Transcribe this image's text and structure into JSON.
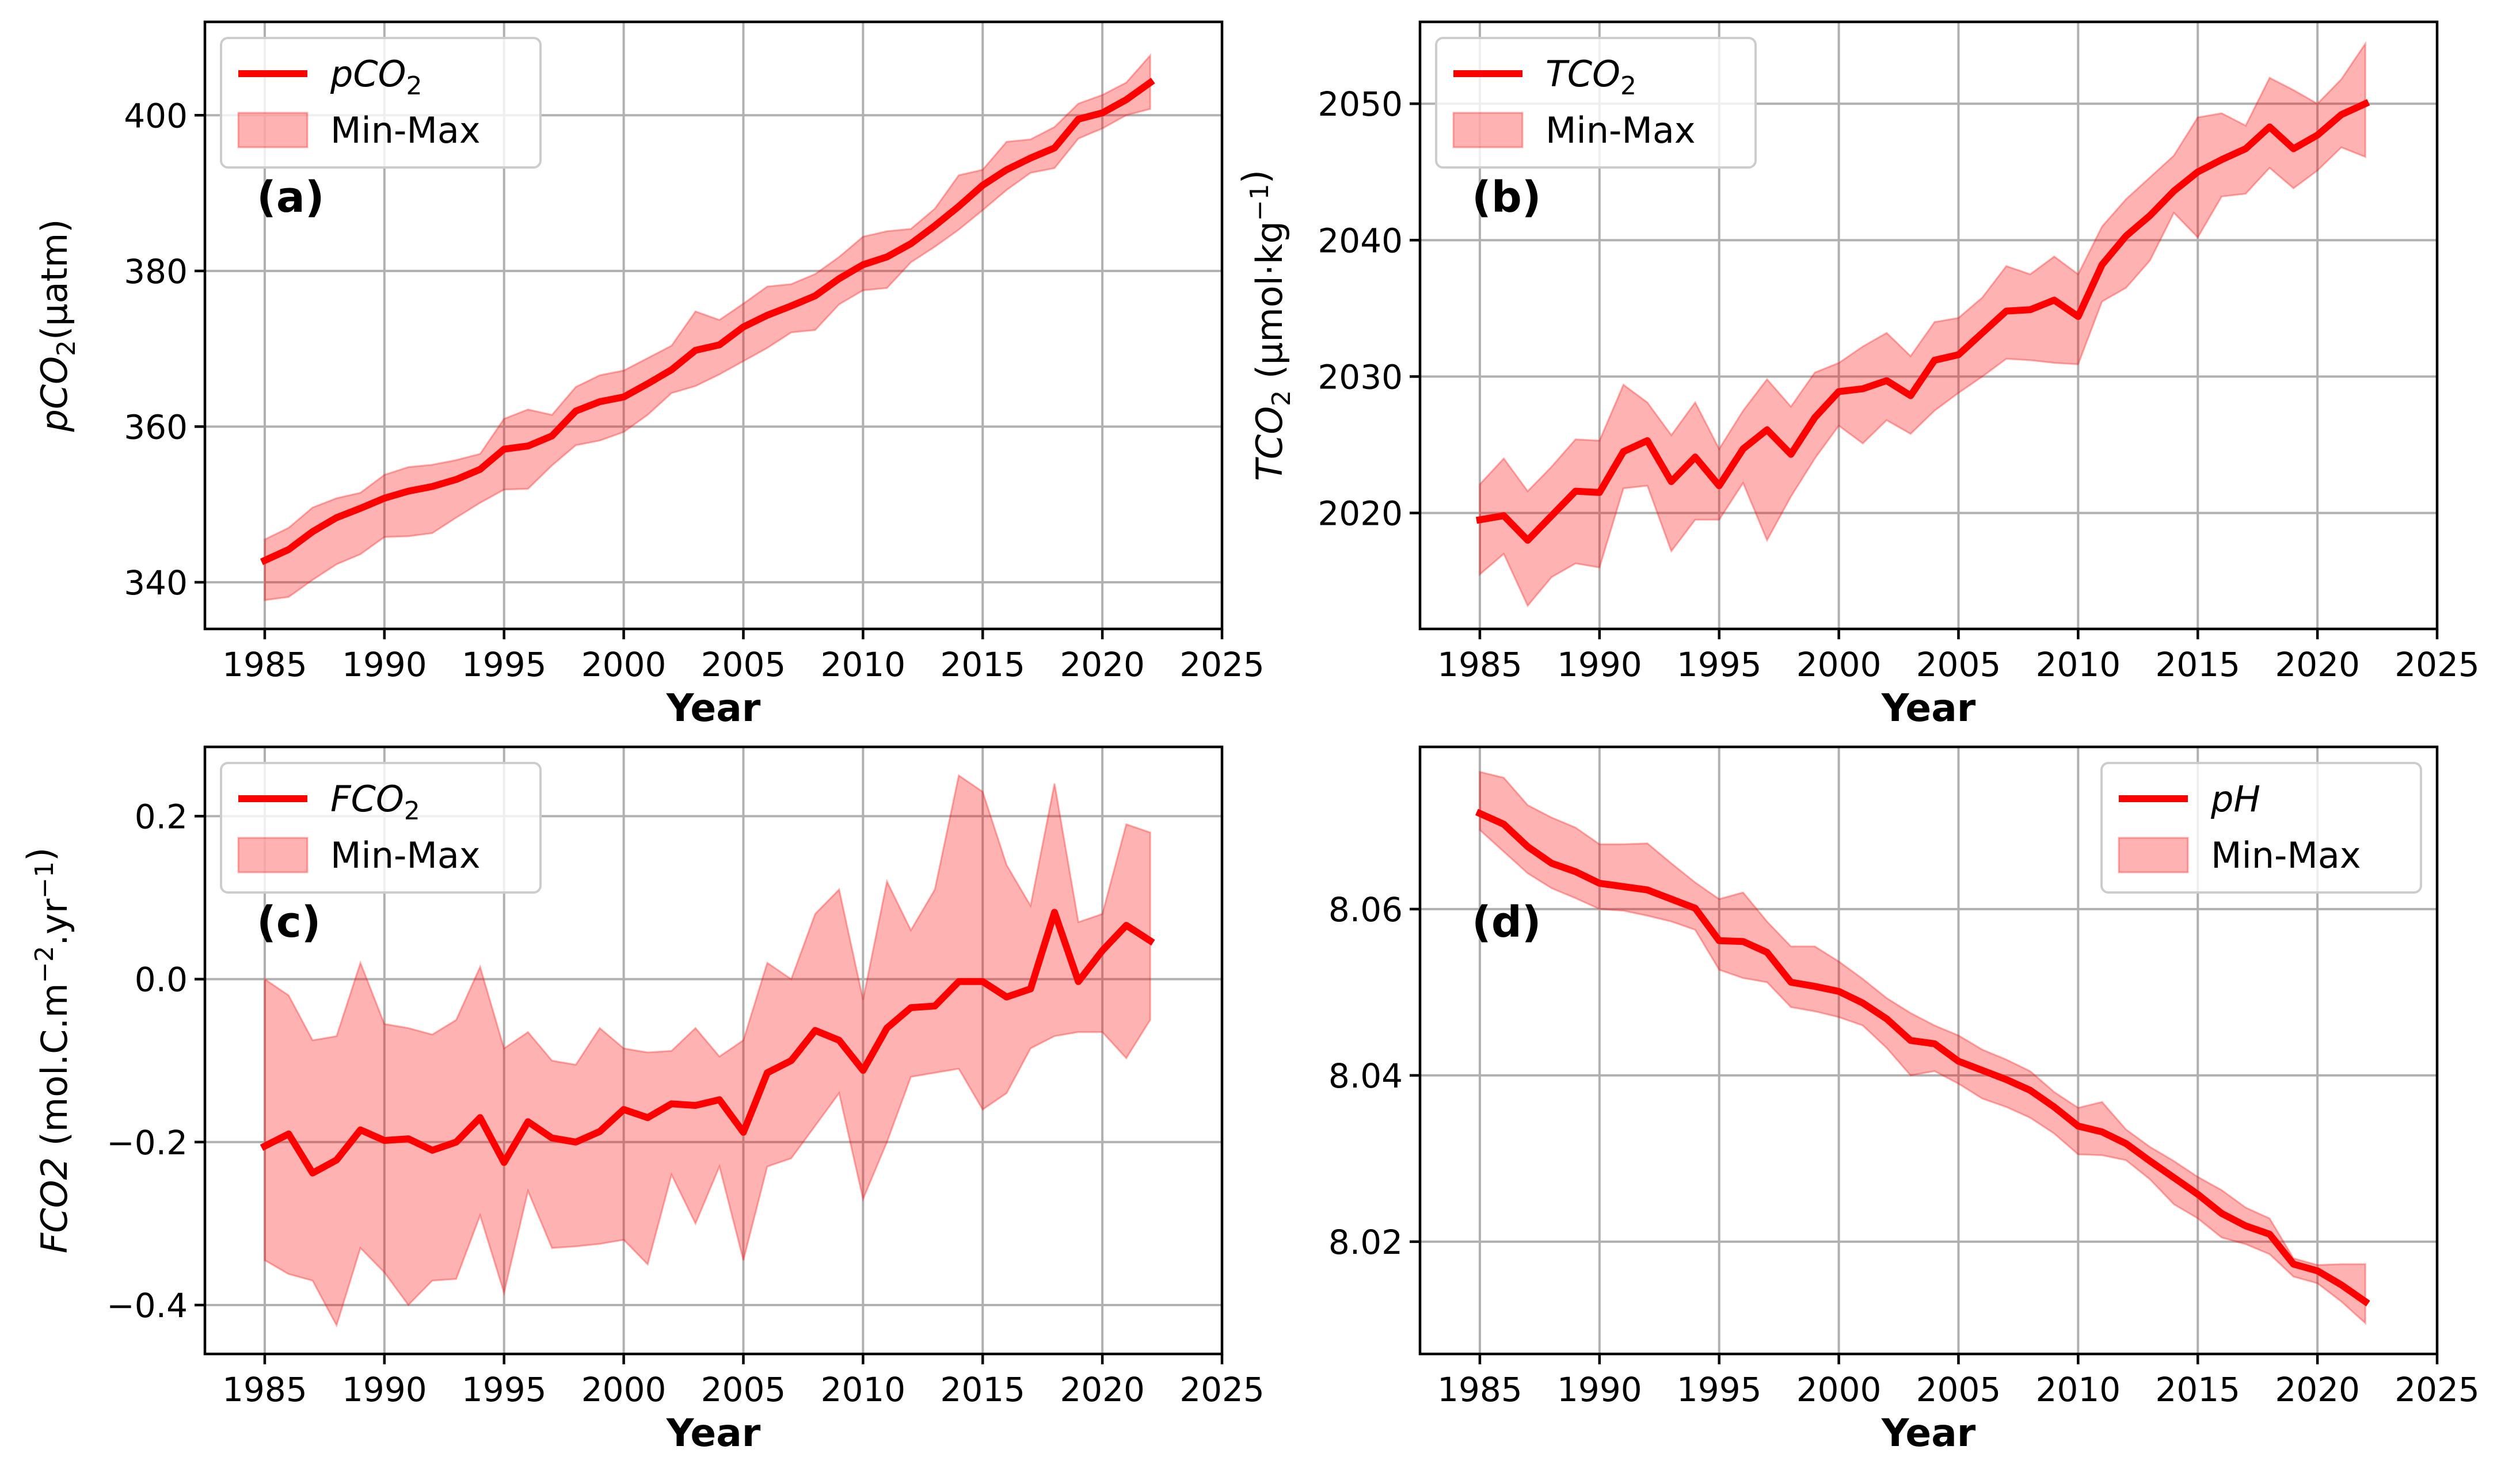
{
  "chart_data": [
    {
      "id": "a",
      "type": "line",
      "tag": "(a)",
      "xlabel": "Year",
      "ylabel": {
        "prefix": "pCO",
        "sub": "2",
        "suffix": "(µatm)"
      },
      "xlim": [
        1982.5,
        2025
      ],
      "ylim": [
        334,
        412
      ],
      "xticks": [
        1985,
        1990,
        1995,
        2000,
        2005,
        2010,
        2015,
        2020,
        2025
      ],
      "yticks": [
        340,
        360,
        380,
        400
      ],
      "legend": {
        "position": "upper-left",
        "line_label": {
          "prefix": "pCO",
          "sub": "2"
        },
        "band_label": "Min-Max"
      },
      "series": [
        {
          "name": "pCO2",
          "x": [
            1985,
            1986,
            1987,
            1988,
            1989,
            1990,
            1991,
            1992,
            1993,
            1994,
            1995,
            1996,
            1997,
            1998,
            1999,
            2000,
            2001,
            2002,
            2003,
            2004,
            2005,
            2006,
            2007,
            2008,
            2009,
            2010,
            2011,
            2012,
            2013,
            2014,
            2015,
            2016,
            2017,
            2018,
            2019,
            2020,
            2021,
            2022
          ],
          "values": [
            342.8,
            344.2,
            346.5,
            348.3,
            349.5,
            350.8,
            351.7,
            352.3,
            353.2,
            354.5,
            357.1,
            357.5,
            358.8,
            362.0,
            363.2,
            363.8,
            365.5,
            367.3,
            369.8,
            370.5,
            372.8,
            374.3,
            375.5,
            376.8,
            379.0,
            380.8,
            381.8,
            383.5,
            385.8,
            388.3,
            391.0,
            393.0,
            394.5,
            395.8,
            399.5,
            400.3,
            402.0,
            404.2
          ],
          "min": [
            337.7,
            338.1,
            340.3,
            342.3,
            343.6,
            345.8,
            345.9,
            346.3,
            348.3,
            350.2,
            351.9,
            352.0,
            355.0,
            357.6,
            358.2,
            359.3,
            361.5,
            364.3,
            365.2,
            366.7,
            368.4,
            370.1,
            372.1,
            372.4,
            375.7,
            377.5,
            377.8,
            381.1,
            383.1,
            385.3,
            387.8,
            390.4,
            392.6,
            393.2,
            397.0,
            398.3,
            400.0,
            400.8
          ],
          "max": [
            345.5,
            347.0,
            349.6,
            350.8,
            351.5,
            353.8,
            354.8,
            355.1,
            355.7,
            356.5,
            361.0,
            362.2,
            361.5,
            365.1,
            366.6,
            367.2,
            368.8,
            370.4,
            374.8,
            373.7,
            375.8,
            378.0,
            378.3,
            379.6,
            381.8,
            384.4,
            385.1,
            385.4,
            388.0,
            392.3,
            393.0,
            396.6,
            396.9,
            398.5,
            401.5,
            402.6,
            404.2,
            407.7
          ]
        }
      ]
    },
    {
      "id": "b",
      "type": "line",
      "tag": "(b)",
      "xlabel": "Year",
      "ylabel": {
        "prefix": "TCO",
        "sub": "2",
        "suffix": " (µmol·kg",
        "sup": "−1",
        "end": ")"
      },
      "xlim": [
        1982.5,
        2025
      ],
      "ylim": [
        2011.5,
        2056
      ],
      "xticks": [
        1985,
        1990,
        1995,
        2000,
        2005,
        2010,
        2015,
        2020,
        2025
      ],
      "yticks": [
        2020,
        2030,
        2040,
        2050
      ],
      "legend": {
        "position": "upper-left",
        "line_label": {
          "prefix": "TCO",
          "sub": "2"
        },
        "band_label": "Min-Max"
      },
      "series": [
        {
          "name": "TCO2",
          "x": [
            1985,
            1986,
            1987,
            1988,
            1989,
            1990,
            1991,
            1992,
            1993,
            1994,
            1995,
            1996,
            1997,
            1998,
            1999,
            2000,
            2001,
            2002,
            2003,
            2004,
            2005,
            2006,
            2007,
            2008,
            2009,
            2010,
            2011,
            2012,
            2013,
            2014,
            2015,
            2016,
            2017,
            2018,
            2019,
            2020,
            2021,
            2022
          ],
          "values": [
            2019.5,
            2019.8,
            2018.0,
            2019.8,
            2021.6,
            2021.5,
            2024.5,
            2025.3,
            2022.3,
            2024.1,
            2022.0,
            2024.7,
            2026.1,
            2024.3,
            2027.0,
            2028.9,
            2029.1,
            2029.7,
            2028.6,
            2031.2,
            2031.6,
            2033.2,
            2034.8,
            2034.9,
            2035.6,
            2034.4,
            2038.2,
            2040.3,
            2041.8,
            2043.6,
            2045.0,
            2045.9,
            2046.7,
            2048.3,
            2046.7,
            2047.7,
            2049.2,
            2050.0
          ],
          "min": [
            2015.5,
            2017.0,
            2013.2,
            2015.3,
            2016.3,
            2016.0,
            2021.8,
            2022.0,
            2017.2,
            2019.5,
            2019.5,
            2022.2,
            2018.0,
            2021.2,
            2024.0,
            2026.4,
            2025.1,
            2026.8,
            2025.8,
            2027.5,
            2028.8,
            2030.0,
            2031.3,
            2031.2,
            2031.0,
            2030.9,
            2035.5,
            2036.5,
            2038.5,
            2042.0,
            2040.2,
            2043.2,
            2043.4,
            2045.3,
            2043.8,
            2045.1,
            2046.8,
            2046.1
          ],
          "max": [
            2022.1,
            2024.0,
            2021.6,
            2023.4,
            2025.4,
            2025.3,
            2029.4,
            2028.1,
            2025.7,
            2028.1,
            2024.7,
            2027.5,
            2029.8,
            2027.8,
            2030.3,
            2031.0,
            2032.2,
            2033.2,
            2031.5,
            2034.0,
            2034.3,
            2035.8,
            2038.1,
            2037.5,
            2038.8,
            2037.5,
            2041.0,
            2043.0,
            2044.6,
            2046.2,
            2049.0,
            2049.3,
            2048.4,
            2051.9,
            2051.0,
            2050.0,
            2051.8,
            2054.4
          ]
        }
      ]
    },
    {
      "id": "c",
      "type": "line",
      "tag": "(c)",
      "xlabel": "Year",
      "ylabel": {
        "prefix": "FCO2",
        "mid": " (mol.C.m",
        "sup": "−2",
        "suffix": ".yr",
        "sup2": "−1",
        "end": ")"
      },
      "xlim": [
        1982.5,
        2025
      ],
      "ylim": [
        -0.46,
        0.285
      ],
      "xticks": [
        1985,
        1990,
        1995,
        2000,
        2005,
        2010,
        2015,
        2020,
        2025
      ],
      "yticks": [
        -0.4,
        -0.2,
        0.0,
        0.2
      ],
      "ytick_labels": [
        "−0.4",
        "−0.2",
        "0.0",
        "0.2"
      ],
      "legend": {
        "position": "upper-left",
        "line_label": {
          "prefix": "FCO",
          "sub": "2"
        },
        "band_label": "Min-Max"
      },
      "series": [
        {
          "name": "FCO2",
          "x": [
            1985,
            1986,
            1987,
            1988,
            1989,
            1990,
            1991,
            1992,
            1993,
            1994,
            1995,
            1996,
            1997,
            1998,
            1999,
            2000,
            2001,
            2002,
            2003,
            2004,
            2005,
            2006,
            2007,
            2008,
            2009,
            2010,
            2011,
            2012,
            2013,
            2014,
            2015,
            2016,
            2017,
            2018,
            2019,
            2020,
            2021,
            2022
          ],
          "values": [
            -0.205,
            -0.19,
            -0.238,
            -0.222,
            -0.185,
            -0.198,
            -0.196,
            -0.21,
            -0.2,
            -0.17,
            -0.225,
            -0.175,
            -0.195,
            -0.2,
            -0.187,
            -0.16,
            -0.17,
            -0.153,
            -0.155,
            -0.148,
            -0.188,
            -0.115,
            -0.1,
            -0.063,
            -0.075,
            -0.112,
            -0.06,
            -0.035,
            -0.033,
            -0.003,
            -0.003,
            -0.022,
            -0.012,
            0.082,
            -0.003,
            0.035,
            0.066,
            0.047
          ],
          "min": [
            -0.345,
            -0.362,
            -0.37,
            -0.425,
            -0.33,
            -0.36,
            -0.4,
            -0.37,
            -0.368,
            -0.29,
            -0.385,
            -0.26,
            -0.33,
            -0.328,
            -0.325,
            -0.32,
            -0.35,
            -0.24,
            -0.3,
            -0.23,
            -0.345,
            -0.23,
            -0.22,
            -0.18,
            -0.14,
            -0.27,
            -0.2,
            -0.12,
            -0.115,
            -0.11,
            -0.16,
            -0.14,
            -0.085,
            -0.07,
            -0.065,
            -0.065,
            -0.097,
            -0.05
          ],
          "max": [
            0.0,
            -0.02,
            -0.075,
            -0.07,
            0.02,
            -0.055,
            -0.06,
            -0.068,
            -0.05,
            0.015,
            -0.085,
            -0.065,
            -0.1,
            -0.105,
            -0.06,
            -0.085,
            -0.09,
            -0.088,
            -0.06,
            -0.095,
            -0.075,
            0.02,
            0.0,
            0.08,
            0.11,
            -0.025,
            0.12,
            0.06,
            0.11,
            0.25,
            0.23,
            0.14,
            0.09,
            0.24,
            0.07,
            0.08,
            0.19,
            0.18
          ]
        }
      ]
    },
    {
      "id": "d",
      "type": "line",
      "tag": "(d)",
      "xlabel": "Year",
      "ylabel": {},
      "xlim": [
        1982.5,
        2025
      ],
      "ylim": [
        8.0065,
        8.0795
      ],
      "xticks": [
        1985,
        1990,
        1995,
        2000,
        2005,
        2010,
        2015,
        2020,
        2025
      ],
      "yticks": [
        8.02,
        8.04,
        8.06
      ],
      "legend": {
        "position": "upper-right",
        "line_label": {
          "prefix": "pH",
          "sub": ""
        },
        "band_label": "Min-Max"
      },
      "series": [
        {
          "name": "pH",
          "x": [
            1985,
            1986,
            1987,
            1988,
            1989,
            1990,
            1991,
            1992,
            1993,
            1994,
            1995,
            1996,
            1997,
            1998,
            1999,
            2000,
            2001,
            2002,
            2003,
            2004,
            2005,
            2006,
            2007,
            2008,
            2009,
            2010,
            2011,
            2012,
            2013,
            2014,
            2015,
            2016,
            2017,
            2018,
            2019,
            2020,
            2021,
            2022
          ],
          "values": [
            8.0715,
            8.0702,
            8.0675,
            8.0655,
            8.0645,
            8.0631,
            8.0627,
            8.0623,
            8.0612,
            8.0601,
            8.0562,
            8.0561,
            8.0548,
            8.0512,
            8.0507,
            8.0501,
            8.0487,
            8.0468,
            8.0442,
            8.0438,
            8.0417,
            8.0406,
            8.0395,
            8.0382,
            8.0362,
            8.0339,
            8.0332,
            8.0318,
            8.0297,
            8.0277,
            8.0257,
            8.0234,
            8.0219,
            8.0209,
            8.0173,
            8.0165,
            8.0148,
            8.0128
          ],
          "min": [
            8.0695,
            8.0669,
            8.0643,
            8.0625,
            8.0613,
            8.06,
            8.0598,
            8.0592,
            8.0585,
            8.0575,
            8.0527,
            8.0517,
            8.0512,
            8.0482,
            8.0477,
            8.047,
            8.046,
            8.0433,
            8.04,
            8.0405,
            8.039,
            8.0372,
            8.0362,
            8.0349,
            8.033,
            8.0305,
            8.0304,
            8.0298,
            8.0275,
            8.0245,
            8.0228,
            8.0205,
            8.0197,
            8.0185,
            8.0158,
            8.015,
            8.0128,
            8.0102
          ],
          "max": [
            8.0765,
            8.0758,
            8.0725,
            8.071,
            8.0698,
            8.0678,
            8.0678,
            8.0679,
            8.0655,
            8.0632,
            8.0612,
            8.062,
            8.0585,
            8.0555,
            8.0555,
            8.0537,
            8.0516,
            8.0493,
            8.0475,
            8.046,
            8.0448,
            8.0431,
            8.0419,
            8.0405,
            8.038,
            8.0361,
            8.0368,
            8.0335,
            8.0314,
            8.0297,
            8.0278,
            8.0262,
            8.0241,
            8.0228,
            8.018,
            8.0172,
            8.0173,
            8.0173
          ]
        }
      ]
    }
  ]
}
